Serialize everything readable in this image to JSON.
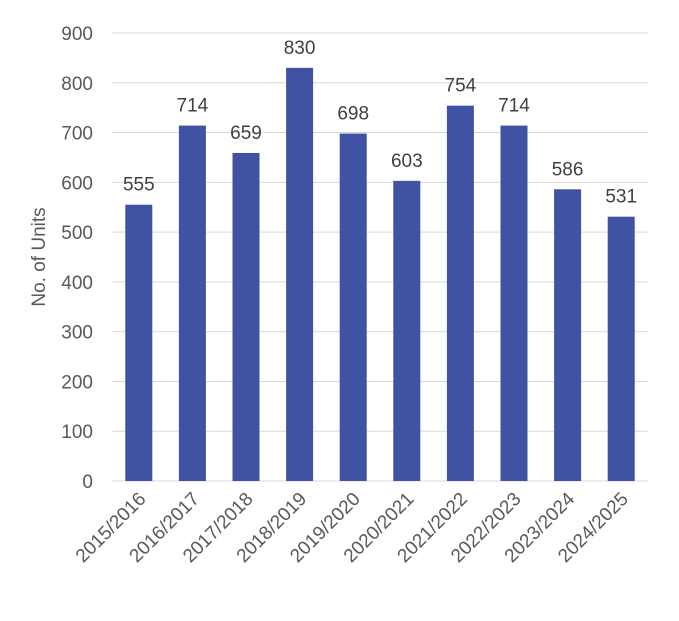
{
  "chart_data": {
    "type": "bar",
    "title": "",
    "xlabel": "",
    "ylabel": "No. of Units",
    "categories": [
      "2015/2016",
      "2016/2017",
      "2017/2018",
      "2018/2019",
      "2019/2020",
      "2020/2021",
      "2021/2022",
      "2022/2023",
      "2023/2024",
      "2024/2025"
    ],
    "values": [
      555,
      714,
      659,
      830,
      698,
      603,
      754,
      714,
      586,
      531
    ],
    "ylim": [
      0,
      900
    ],
    "yticks": [
      0,
      100,
      200,
      300,
      400,
      500,
      600,
      700,
      800,
      900
    ],
    "grid": true,
    "legend": "none",
    "data_labels": true,
    "colors": {
      "bar": "#3f53a2",
      "grid": "#d9d9d9",
      "text": "#595959"
    }
  }
}
